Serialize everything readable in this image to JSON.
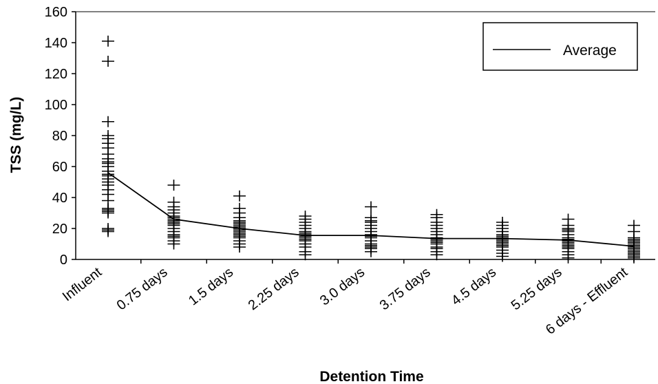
{
  "chart_data": {
    "type": "scatter",
    "title": "",
    "xlabel": "Detention Time",
    "ylabel": "TSS (mg/L)",
    "ylim": [
      0,
      160
    ],
    "yticks": [
      0,
      20,
      40,
      60,
      80,
      100,
      120,
      140,
      160
    ],
    "categories": [
      "Influent",
      "0.75 days",
      "1.5 days",
      "2.25 days",
      "3.0 days",
      "3.75 days",
      "4.5 days",
      "5.25 days",
      "6 days - Effluent"
    ],
    "grid": false,
    "legend_position": "top-right",
    "observations": [
      [
        18,
        19,
        20,
        30,
        31,
        32,
        33,
        38,
        42,
        45,
        48,
        50,
        52,
        54,
        55,
        57,
        60,
        62,
        63,
        65,
        68,
        72,
        75,
        78,
        80,
        89,
        128,
        141
      ],
      [
        10,
        12,
        14,
        15,
        16,
        18,
        20,
        22,
        23,
        24,
        25,
        26,
        27,
        28,
        30,
        32,
        34,
        37,
        48
      ],
      [
        8,
        10,
        12,
        14,
        15,
        16,
        17,
        18,
        19,
        20,
        21,
        22,
        23,
        24,
        25,
        27,
        30,
        33,
        41
      ],
      [
        3,
        5,
        8,
        10,
        12,
        13,
        14,
        15,
        16,
        17,
        18,
        20,
        22,
        24,
        26,
        28
      ],
      [
        5,
        7,
        8,
        9,
        10,
        12,
        14,
        15,
        16,
        18,
        20,
        22,
        24,
        25,
        27,
        34
      ],
      [
        3,
        5,
        7,
        8,
        10,
        11,
        12,
        13,
        14,
        16,
        18,
        20,
        22,
        24,
        27,
        29
      ],
      [
        2,
        4,
        6,
        8,
        9,
        10,
        11,
        12,
        13,
        14,
        15,
        16,
        18,
        20,
        22,
        24
      ],
      [
        1,
        3,
        5,
        7,
        8,
        9,
        10,
        11,
        12,
        13,
        14,
        16,
        18,
        19,
        20,
        22,
        26
      ],
      [
        1,
        2,
        3,
        4,
        5,
        6,
        7,
        8,
        9,
        10,
        11,
        12,
        13,
        14,
        18,
        22
      ]
    ],
    "series": [
      {
        "name": "Average",
        "values": [
          56,
          26,
          20,
          15.5,
          15.5,
          13.5,
          13.5,
          12.5,
          8.5
        ]
      }
    ]
  },
  "colors": {
    "line": "#000000",
    "marker": "#000000",
    "axis": "#000000",
    "legend_border": "#000000"
  }
}
